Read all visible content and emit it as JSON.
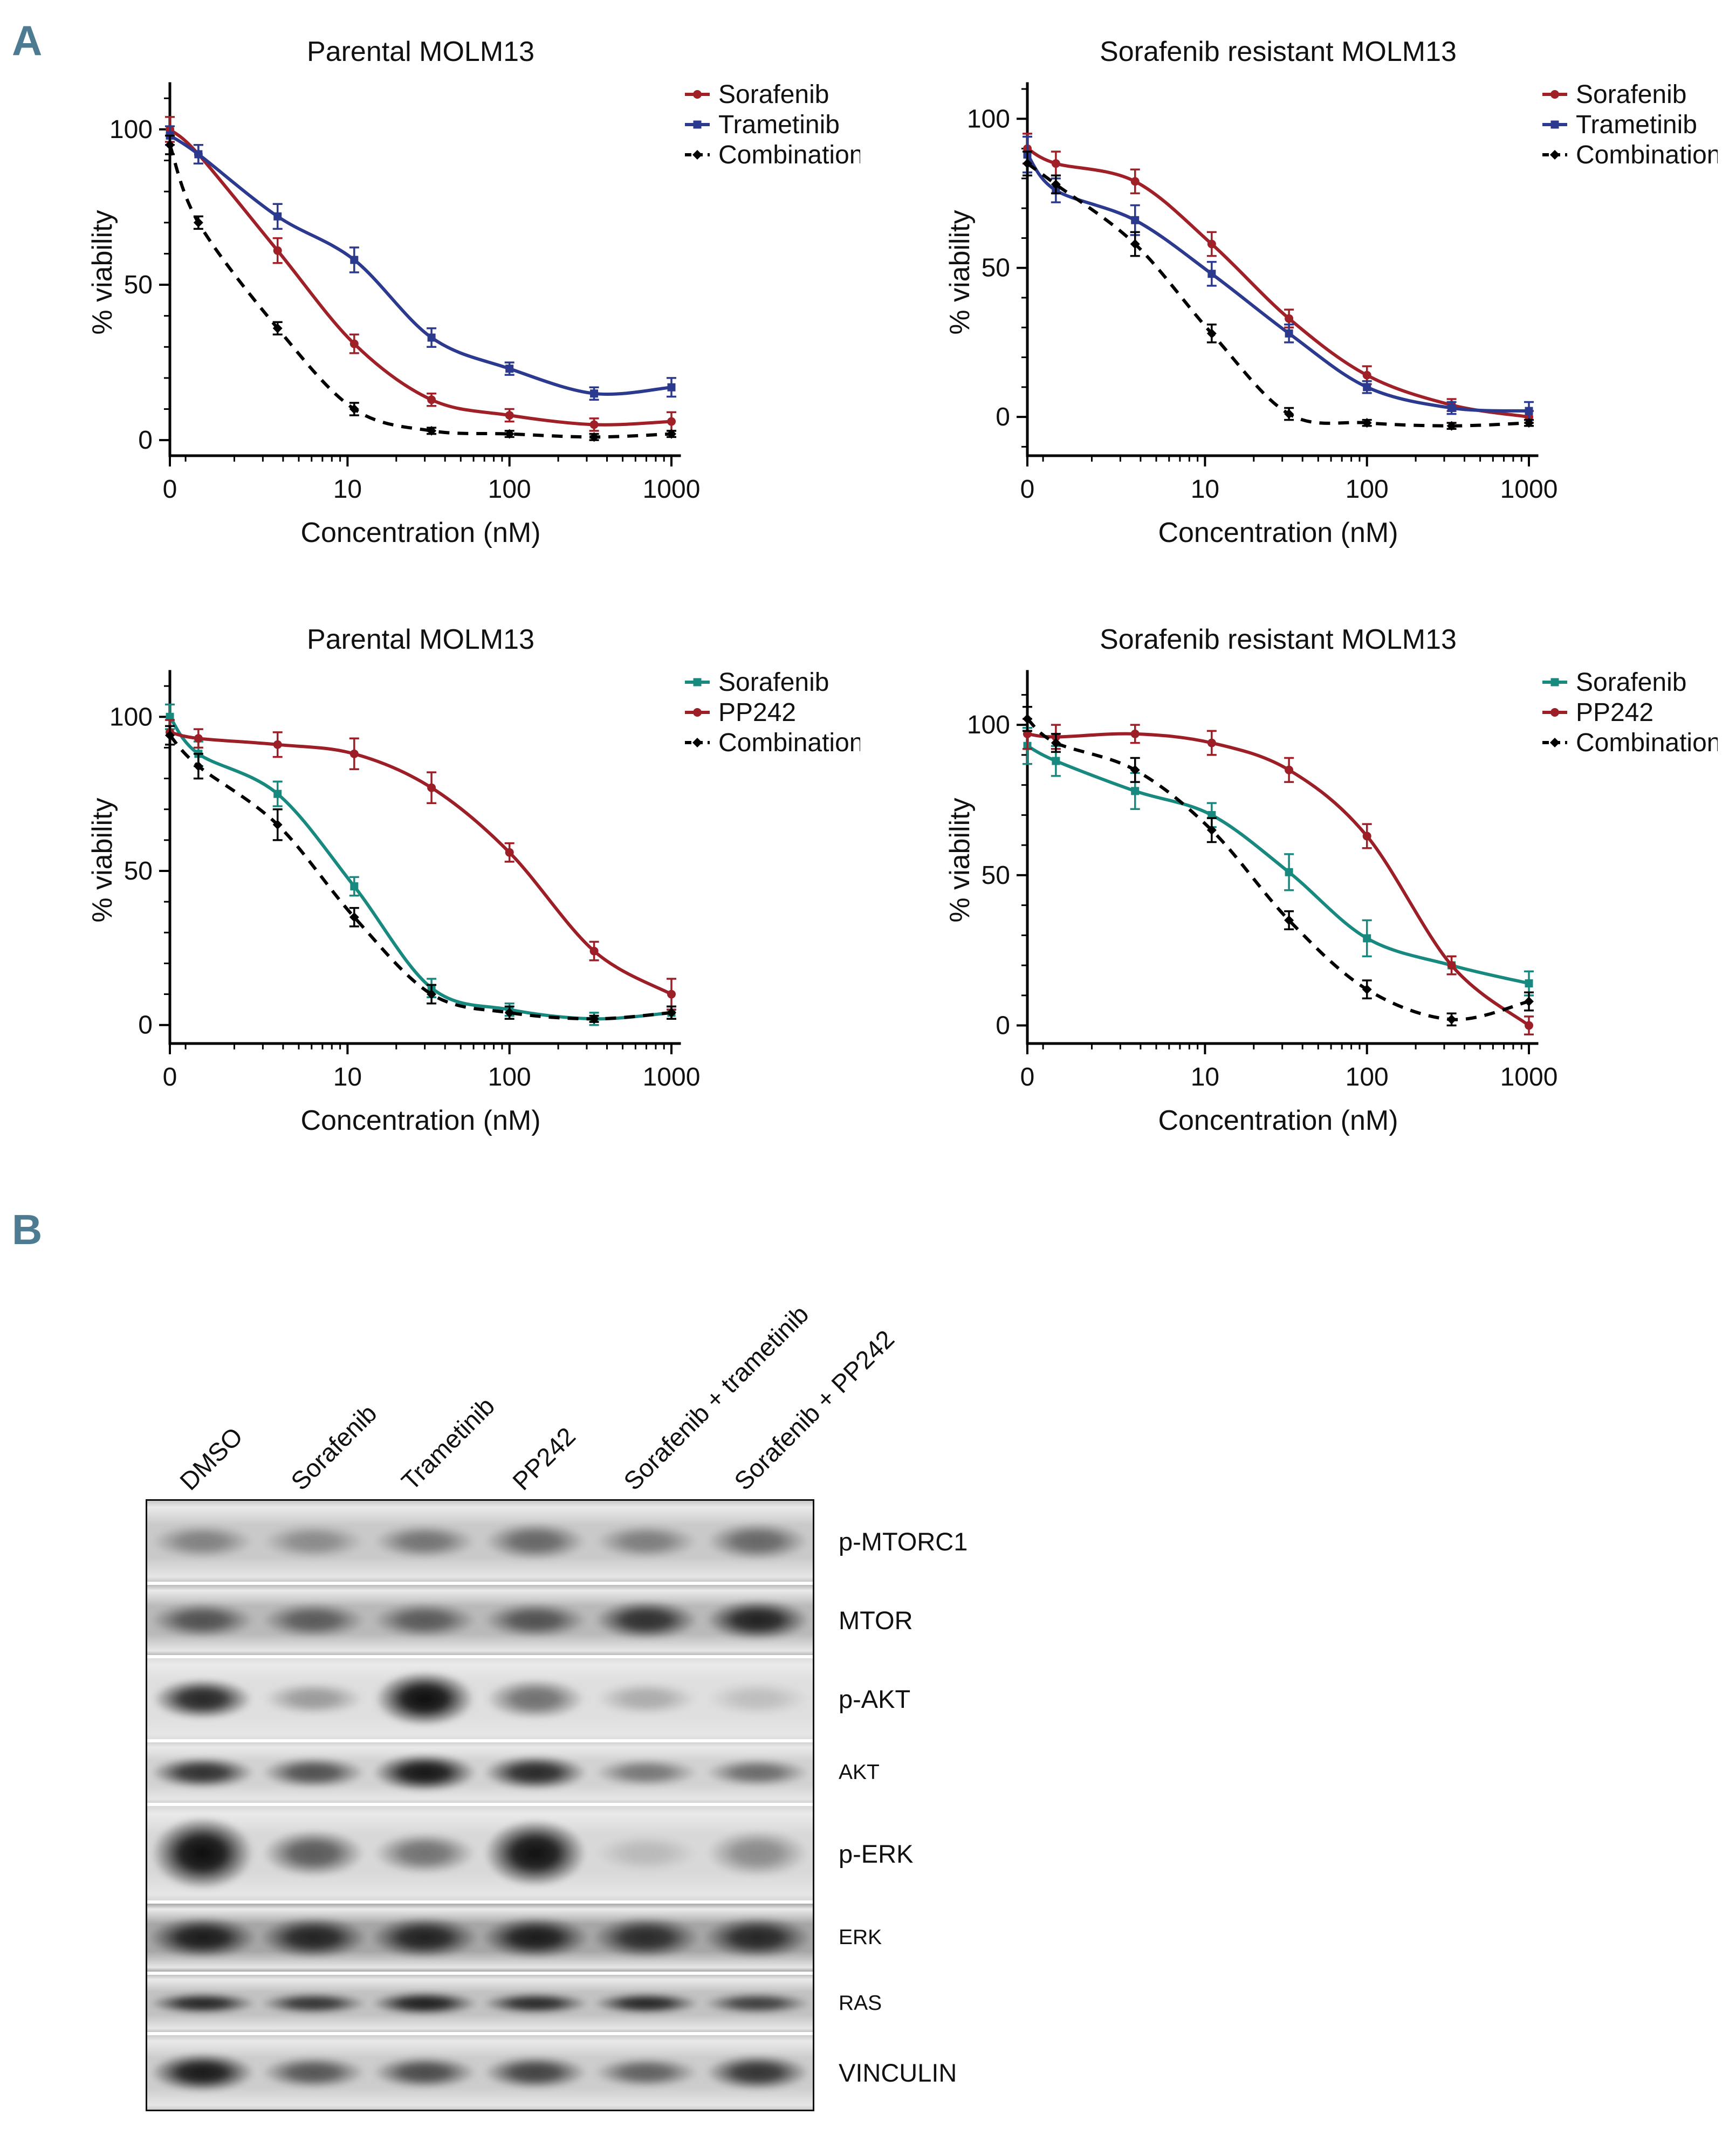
{
  "panels": {
    "a": "A",
    "b": "B"
  },
  "colors": {
    "panel_label": "#4c7b92",
    "sorafenib_red": "#a02028",
    "trametinib_blue": "#2b3a8f",
    "combination_black": "#000000",
    "sorafenib_teal": "#18897f",
    "pp242_red": "#9c1f27"
  },
  "chart_data": [
    {
      "type": "line",
      "title": "Parental MOLM13",
      "xlabel": "Concentration (nM)",
      "ylabel": "% viability",
      "xticks": [
        0,
        10,
        100,
        1000
      ],
      "yticks": [
        0,
        50,
        100
      ],
      "ylim": [
        -5,
        113
      ],
      "x": [
        0,
        1.2,
        3.7,
        11,
        33,
        100,
        333,
        1000
      ],
      "legend_position": "top-right",
      "series": [
        {
          "name": "Sorafenib",
          "color": "#a02028",
          "dash": false,
          "marker": "circle",
          "y": [
            100,
            92,
            61,
            31,
            13,
            8,
            5,
            6
          ],
          "err": [
            4,
            3,
            4,
            3,
            2,
            2,
            2,
            3
          ]
        },
        {
          "name": "Trametinib",
          "color": "#2b3a8f",
          "dash": false,
          "marker": "square",
          "y": [
            98,
            92,
            72,
            58,
            33,
            23,
            15,
            17
          ],
          "err": [
            3,
            3,
            4,
            4,
            3,
            2,
            2,
            3
          ]
        },
        {
          "name": "Combination",
          "color": "#000000",
          "dash": true,
          "marker": "diamond",
          "y": [
            95,
            70,
            36,
            10,
            3,
            2,
            1,
            2
          ],
          "err": [
            3,
            2,
            2,
            2,
            1,
            1,
            1,
            1
          ]
        }
      ]
    },
    {
      "type": "line",
      "title": "Sorafenib resistant MOLM13",
      "xlabel": "Concentration (nM)",
      "ylabel": "% viability",
      "xticks": [
        0,
        10,
        100,
        1000
      ],
      "yticks": [
        0,
        50,
        100
      ],
      "ylim": [
        -13,
        110
      ],
      "x": [
        0,
        1.2,
        3.7,
        11,
        33,
        100,
        333,
        1000
      ],
      "legend_position": "top-right",
      "series": [
        {
          "name": "Sorafenib",
          "color": "#a02028",
          "dash": false,
          "marker": "circle",
          "y": [
            90,
            85,
            79,
            58,
            33,
            14,
            4,
            0
          ],
          "err": [
            5,
            4,
            4,
            4,
            3,
            3,
            2,
            2
          ]
        },
        {
          "name": "Trametinib",
          "color": "#2b3a8f",
          "dash": false,
          "marker": "square",
          "y": [
            88,
            76,
            66,
            48,
            28,
            10,
            3,
            2
          ],
          "err": [
            6,
            4,
            5,
            4,
            3,
            2,
            2,
            3
          ]
        },
        {
          "name": "Combination",
          "color": "#000000",
          "dash": true,
          "marker": "diamond",
          "y": [
            85,
            78,
            58,
            28,
            1,
            -2,
            -3,
            -2
          ],
          "err": [
            4,
            3,
            4,
            3,
            2,
            1,
            1,
            1
          ]
        }
      ]
    },
    {
      "type": "line",
      "title": "Parental MOLM13",
      "xlabel": "Concentration (nM)",
      "ylabel": "% viability",
      "xticks": [
        0,
        10,
        100,
        1000
      ],
      "yticks": [
        0,
        50,
        100
      ],
      "ylim": [
        -6,
        113
      ],
      "x": [
        0,
        1.2,
        3.7,
        11,
        33,
        100,
        333,
        1000
      ],
      "legend_position": "top-right",
      "series": [
        {
          "name": "Sorafenib",
          "color": "#18897f",
          "dash": false,
          "marker": "square",
          "y": [
            100,
            88,
            75,
            45,
            12,
            5,
            2,
            4
          ],
          "err": [
            4,
            4,
            4,
            3,
            3,
            2,
            2,
            2
          ]
        },
        {
          "name": "PP242",
          "color": "#9c1f27",
          "dash": false,
          "marker": "circle",
          "y": [
            95,
            93,
            91,
            88,
            77,
            56,
            24,
            10
          ],
          "err": [
            4,
            3,
            4,
            5,
            5,
            3,
            3,
            5
          ]
        },
        {
          "name": "Combination",
          "color": "#000000",
          "dash": true,
          "marker": "diamond",
          "y": [
            94,
            84,
            65,
            35,
            10,
            4,
            2,
            4
          ],
          "err": [
            3,
            4,
            5,
            3,
            3,
            2,
            1,
            2
          ]
        }
      ]
    },
    {
      "type": "line",
      "title": "Sorafenib resistant MOLM13",
      "xlabel": "Concentration (nM)",
      "ylabel": "% viability",
      "xticks": [
        0,
        10,
        100,
        1000
      ],
      "yticks": [
        0,
        50,
        100
      ],
      "ylim": [
        -6,
        116
      ],
      "x": [
        0,
        1.2,
        3.7,
        11,
        33,
        100,
        333,
        1000
      ],
      "legend_position": "top-right",
      "series": [
        {
          "name": "Sorafenib",
          "color": "#18897f",
          "dash": false,
          "marker": "square",
          "y": [
            93,
            88,
            78,
            70,
            51,
            29,
            20,
            14
          ],
          "err": [
            6,
            5,
            6,
            4,
            6,
            6,
            3,
            4
          ]
        },
        {
          "name": "PP242",
          "color": "#9c1f27",
          "dash": false,
          "marker": "circle",
          "y": [
            97,
            96,
            97,
            94,
            85,
            63,
            20,
            0
          ],
          "err": [
            5,
            4,
            3,
            4,
            4,
            4,
            3,
            3
          ]
        },
        {
          "name": "Combination",
          "color": "#000000",
          "dash": true,
          "marker": "diamond",
          "y": [
            102,
            94,
            85,
            65,
            35,
            12,
            2,
            8
          ],
          "err": [
            4,
            3,
            4,
            4,
            3,
            3,
            2,
            3
          ]
        }
      ]
    }
  ],
  "blot": {
    "lanes": [
      "DMSO",
      "Sorafenib",
      "Trametinib",
      "PP242",
      "Sorafenib + trametinib",
      "Sorafenib + PP242"
    ],
    "rows": [
      {
        "label": "p-MTORC1",
        "small": false,
        "bg": "#c9c9c9",
        "h": 150,
        "band_h": 0.42,
        "band_w": 0.92,
        "intensities": [
          0.38,
          0.33,
          0.45,
          0.52,
          0.4,
          0.52
        ],
        "scales": [
          1,
          1,
          1,
          1.1,
          1,
          1.1
        ]
      },
      {
        "label": "MTOR",
        "small": false,
        "bg": "#b9b9b9",
        "h": 130,
        "band_h": 0.5,
        "band_w": 0.94,
        "intensities": [
          0.6,
          0.55,
          0.55,
          0.6,
          0.8,
          0.88
        ],
        "scales": [
          1,
          1,
          1,
          1,
          1.1,
          1.15
        ]
      },
      {
        "label": "p-AKT",
        "small": false,
        "bg": "#dedede",
        "h": 150,
        "band_h": 0.5,
        "band_w": 0.9,
        "intensities": [
          0.88,
          0.32,
          1.0,
          0.52,
          0.24,
          0.15
        ],
        "scales": [
          1,
          0.8,
          1.35,
          1,
          0.8,
          0.8
        ]
      },
      {
        "label": "AKT",
        "small": true,
        "bg": "#d2d2d2",
        "h": 112,
        "band_h": 0.52,
        "band_w": 0.94,
        "intensities": [
          0.82,
          0.66,
          0.96,
          0.86,
          0.46,
          0.52
        ],
        "scales": [
          1,
          1,
          1.2,
          1.1,
          0.9,
          0.9
        ]
      },
      {
        "label": "p-ERK",
        "small": false,
        "bg": "#d8d8d8",
        "h": 175,
        "band_h": 0.55,
        "band_w": 0.92,
        "intensities": [
          1.0,
          0.62,
          0.5,
          0.98,
          0.15,
          0.38
        ],
        "scales": [
          1.4,
          0.9,
          0.8,
          1.3,
          0.7,
          0.9
        ]
      },
      {
        "label": "ERK",
        "small": true,
        "bg": "#a6a6a6",
        "h": 126,
        "band_h": 0.6,
        "band_w": 0.97,
        "intensities": [
          0.9,
          0.85,
          0.86,
          0.9,
          0.8,
          0.83
        ],
        "scales": [
          1,
          1,
          1,
          1,
          1,
          1
        ]
      },
      {
        "label": "RAS",
        "small": true,
        "bg": "#c2c2c2",
        "h": 106,
        "band_h": 0.38,
        "band_w": 0.96,
        "intensities": [
          0.86,
          0.78,
          0.9,
          0.84,
          0.86,
          0.72
        ],
        "scales": [
          1,
          1,
          1.1,
          1,
          1,
          1
        ]
      },
      {
        "label": "VINCULIN",
        "small": false,
        "bg": "#cccccc",
        "h": 138,
        "band_h": 0.48,
        "band_w": 0.94,
        "intensities": [
          0.94,
          0.62,
          0.68,
          0.72,
          0.56,
          0.8
        ],
        "scales": [
          1.1,
          0.9,
          0.9,
          0.95,
          0.85,
          1
        ]
      }
    ]
  }
}
